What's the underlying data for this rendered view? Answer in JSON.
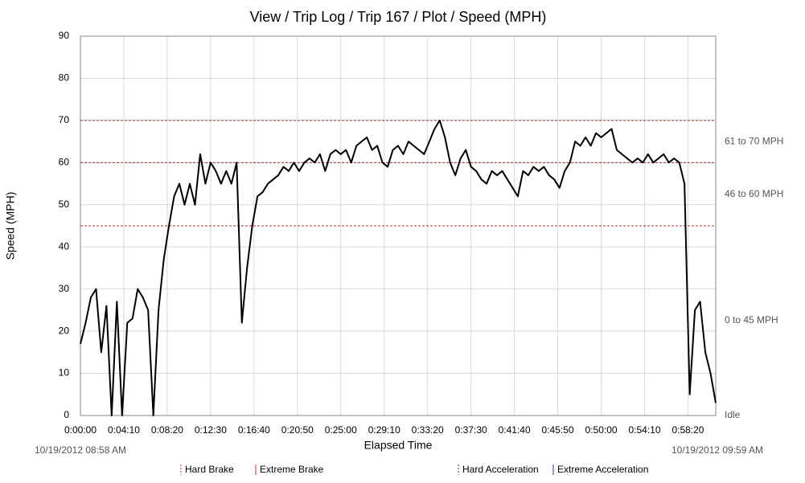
{
  "chart_data": {
    "type": "line",
    "title": "View / Trip Log / Trip 167 / Plot / Speed (MPH)",
    "x_label": "Elapsed Time",
    "y_label": "Speed (MPH)",
    "start_time": "10/19/2012 08:58 AM",
    "end_time": "10/19/2012 09:59 AM",
    "color": "#000000",
    "grid": true,
    "xlim": [
      0,
      3660
    ],
    "ylim": [
      0,
      90
    ],
    "yticks": [
      0,
      10,
      20,
      30,
      40,
      50,
      60,
      70,
      80,
      90
    ],
    "xticks": [
      {
        "value": 0,
        "label": "0:00:00"
      },
      {
        "value": 250,
        "label": "0:04:10"
      },
      {
        "value": 500,
        "label": "0:08:20"
      },
      {
        "value": 750,
        "label": "0:12:30"
      },
      {
        "value": 1000,
        "label": "0:16:40"
      },
      {
        "value": 1250,
        "label": "0:20:50"
      },
      {
        "value": 1500,
        "label": "0:25:00"
      },
      {
        "value": 1750,
        "label": "0:29:10"
      },
      {
        "value": 2000,
        "label": "0:33:20"
      },
      {
        "value": 2250,
        "label": "0:37:30"
      },
      {
        "value": 2500,
        "label": "0:41:40"
      },
      {
        "value": 2750,
        "label": "0:45:50"
      },
      {
        "value": 3000,
        "label": "0:50:00"
      },
      {
        "value": 3250,
        "label": "0:54:10"
      },
      {
        "value": 3500,
        "label": "0:58:20"
      }
    ],
    "reference_lines": [
      {
        "value": 70,
        "color": "#a03030"
      },
      {
        "value": 60,
        "color": "#a03030"
      },
      {
        "value": 45,
        "color": "#a03030"
      }
    ],
    "zones": [
      {
        "label": "61 to 70 MPH",
        "from": 60,
        "to": 70
      },
      {
        "label": "46 to 60 MPH",
        "from": 45,
        "to": 60
      },
      {
        "label": "0 to 45 MPH",
        "from": 0,
        "to": 45
      },
      {
        "label": "Idle",
        "from": 0,
        "to": 0
      }
    ],
    "legend": [
      {
        "name": "Hard Brake",
        "color": "#c03030",
        "dashed": true
      },
      {
        "name": "Extreme Brake",
        "color": "#c03030",
        "dashed": false
      },
      {
        "name": "Hard Acceleration",
        "color": "#303080",
        "dashed": true
      },
      {
        "name": "Extreme Acceleration",
        "color": "#303080",
        "dashed": false
      }
    ],
    "x": [
      0,
      30,
      60,
      90,
      120,
      150,
      180,
      210,
      240,
      270,
      300,
      330,
      360,
      390,
      420,
      450,
      480,
      510,
      540,
      570,
      600,
      630,
      660,
      690,
      720,
      750,
      780,
      810,
      840,
      870,
      900,
      930,
      960,
      990,
      1020,
      1050,
      1080,
      1110,
      1140,
      1170,
      1200,
      1230,
      1260,
      1290,
      1320,
      1350,
      1380,
      1410,
      1440,
      1470,
      1500,
      1530,
      1560,
      1590,
      1620,
      1650,
      1680,
      1710,
      1740,
      1770,
      1800,
      1830,
      1860,
      1890,
      1920,
      1950,
      1980,
      2010,
      2040,
      2070,
      2100,
      2130,
      2160,
      2190,
      2220,
      2250,
      2280,
      2310,
      2340,
      2370,
      2400,
      2430,
      2460,
      2490,
      2520,
      2550,
      2580,
      2610,
      2640,
      2670,
      2700,
      2730,
      2760,
      2790,
      2820,
      2850,
      2880,
      2910,
      2940,
      2970,
      3000,
      3030,
      3060,
      3090,
      3120,
      3150,
      3180,
      3210,
      3240,
      3270,
      3300,
      3330,
      3360,
      3390,
      3420,
      3450,
      3480,
      3510,
      3540,
      3570,
      3600,
      3630,
      3660
    ],
    "values": [
      17,
      22,
      28,
      30,
      15,
      26,
      0,
      27,
      0,
      22,
      23,
      30,
      28,
      25,
      0,
      25,
      37,
      45,
      52,
      55,
      50,
      55,
      50,
      62,
      55,
      60,
      58,
      55,
      58,
      55,
      60,
      22,
      35,
      45,
      52,
      53,
      55,
      56,
      57,
      59,
      58,
      60,
      58,
      60,
      61,
      60,
      62,
      58,
      62,
      63,
      62,
      63,
      60,
      64,
      65,
      66,
      63,
      64,
      60,
      59,
      63,
      64,
      62,
      65,
      64,
      63,
      62,
      65,
      68,
      70,
      66,
      60,
      57,
      61,
      63,
      59,
      58,
      56,
      55,
      58,
      57,
      58,
      56,
      54,
      52,
      58,
      57,
      59,
      58,
      59,
      57,
      56,
      54,
      58,
      60,
      65,
      64,
      66,
      64,
      67,
      66,
      67,
      68,
      63,
      62,
      61,
      60,
      61,
      60,
      62,
      60,
      61,
      62,
      60,
      61,
      60,
      55,
      5,
      25,
      27,
      15,
      10,
      3
    ]
  }
}
